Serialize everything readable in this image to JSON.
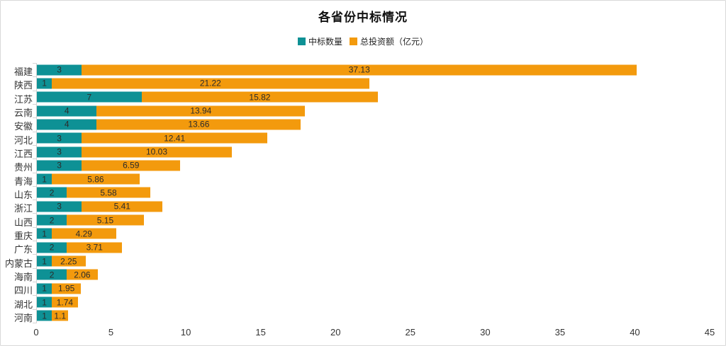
{
  "chart": {
    "title": "各省份中标情况"
  },
  "chart_data": {
    "type": "bar",
    "orientation": "horizontal",
    "stacked": true,
    "title": "各省份中标情况",
    "legend_position": "top-center",
    "grid": false,
    "value_labels": "inside-center",
    "categories": [
      "福建",
      "陕西",
      "江苏",
      "云南",
      "安徽",
      "河北",
      "江西",
      "贵州",
      "青海",
      "山东",
      "浙江",
      "山西",
      "重庆",
      "广东",
      "内蒙古",
      "海南",
      "四川",
      "湖北",
      "河南"
    ],
    "series": [
      {
        "name": "中标数量",
        "color": "#0E9195",
        "values": [
          3,
          1,
          7,
          4,
          4,
          3,
          3,
          3,
          1,
          2,
          3,
          2,
          1,
          2,
          1,
          2,
          1,
          1,
          1
        ]
      },
      {
        "name": "总投资额（亿元）",
        "color": "#F39A0D",
        "values": [
          37.13,
          21.22,
          15.82,
          13.94,
          13.66,
          12.41,
          10.03,
          6.59,
          5.86,
          5.58,
          5.41,
          5.15,
          4.29,
          3.71,
          2.25,
          2.06,
          1.95,
          1.74,
          1.1
        ]
      }
    ],
    "x_axis": {
      "ticks": [
        0,
        5,
        10,
        15,
        20,
        25,
        30,
        35,
        40,
        45
      ],
      "min": 0,
      "max": 45
    },
    "axis_color": "#d4d4d4",
    "label_color": "#333333"
  }
}
